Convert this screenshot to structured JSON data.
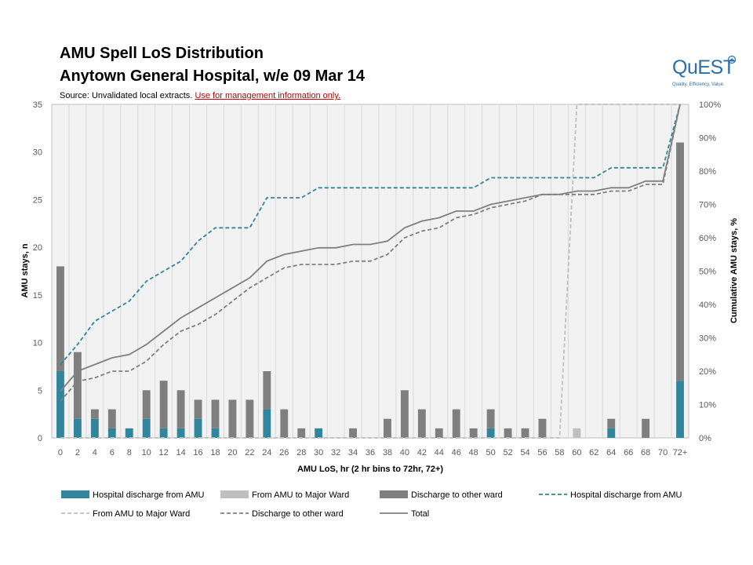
{
  "header": {
    "title_line1": "AMU Spell LoS Distribution",
    "title_line2": "Anytown General Hospital, w/e 09 Mar 14",
    "source_prefix": "Source:  Unvalidated local extracts.",
    "source_warning": "Use for management  information only."
  },
  "logo": {
    "name": "QuEST",
    "tagline": "Quality, Efficiency, Value"
  },
  "colors": {
    "hospital_discharge": "#31859c",
    "major_ward": "#bfbfbf",
    "other_ward": "#7f7f7f",
    "total": "#808080",
    "grid": "#d9d9d9",
    "plot_bg": "#f2f2f2"
  },
  "chart_data": {
    "type": "bar",
    "title": "AMU Spell LoS Distribution",
    "xlabel": "AMU LoS, hr (2 hr bins to 72hr, 72+)",
    "ylabel": "AMU stays, n",
    "y2label": "Cumulative AMU stays, %",
    "ylim": [
      0,
      35
    ],
    "yticks": [
      "0",
      "5",
      "10",
      "15",
      "20",
      "25",
      "30",
      "35"
    ],
    "y2lim": [
      0,
      100
    ],
    "y2ticks": [
      "0%",
      "10%",
      "20%",
      "30%",
      "40%",
      "50%",
      "60%",
      "70%",
      "80%",
      "90%",
      "100%"
    ],
    "categories": [
      "0",
      "2",
      "4",
      "6",
      "8",
      "10",
      "12",
      "14",
      "16",
      "18",
      "20",
      "22",
      "24",
      "26",
      "28",
      "30",
      "32",
      "34",
      "36",
      "38",
      "40",
      "42",
      "44",
      "46",
      "48",
      "50",
      "52",
      "54",
      "56",
      "58",
      "60",
      "62",
      "64",
      "66",
      "68",
      "70",
      "72+"
    ],
    "bar_series": [
      {
        "name": "Hospital discharge from AMU",
        "color": "#31859c",
        "values": [
          7,
          2,
          2,
          1,
          1,
          2,
          1,
          1,
          2,
          1,
          0,
          0,
          3,
          0,
          0,
          1,
          0,
          0,
          0,
          0,
          0,
          0,
          0,
          0,
          0,
          1,
          0,
          0,
          0,
          0,
          0,
          0,
          1,
          0,
          0,
          0,
          6
        ]
      },
      {
        "name": "From AMU to Major Ward",
        "color": "#bfbfbf",
        "values": [
          0,
          0,
          0,
          0,
          0,
          0,
          0,
          0,
          0,
          0,
          0,
          0,
          0,
          0,
          0,
          0,
          0,
          0,
          0,
          0,
          0,
          0,
          0,
          0,
          0,
          0,
          0,
          0,
          0,
          0,
          1,
          0,
          0,
          0,
          0,
          0,
          0
        ]
      },
      {
        "name": "Discharge to other ward",
        "color": "#7f7f7f",
        "values": [
          11,
          7,
          1,
          2,
          0,
          3,
          5,
          4,
          2,
          3,
          4,
          4,
          4,
          3,
          1,
          0,
          0,
          1,
          0,
          2,
          5,
          3,
          1,
          3,
          1,
          2,
          1,
          1,
          2,
          0,
          0,
          0,
          1,
          0,
          2,
          0,
          25
        ]
      }
    ],
    "line_series": [
      {
        "name": "Hospital discharge from AMU",
        "color": "#31859c",
        "style": "dashed",
        "values": [
          22,
          28,
          35,
          38,
          41,
          47,
          50,
          53,
          59,
          63,
          63,
          63,
          72,
          72,
          72,
          75,
          75,
          75,
          75,
          75,
          75,
          75,
          75,
          75,
          75,
          78,
          78,
          78,
          78,
          78,
          78,
          78,
          81,
          81,
          81,
          81,
          100
        ]
      },
      {
        "name": "From AMU to Major Ward",
        "color": "#bfbfbf",
        "style": "dashed",
        "values": [
          0,
          0,
          0,
          0,
          0,
          0,
          0,
          0,
          0,
          0,
          0,
          0,
          0,
          0,
          0,
          0,
          0,
          0,
          0,
          0,
          0,
          0,
          0,
          0,
          0,
          0,
          0,
          0,
          0,
          0,
          100,
          100,
          100,
          100,
          100,
          100,
          100
        ]
      },
      {
        "name": "Discharge to other ward",
        "color": "#7f7f7f",
        "style": "dashed",
        "values": [
          11,
          17,
          18,
          20,
          20,
          23,
          28,
          32,
          34,
          37,
          41,
          45,
          48,
          51,
          52,
          52,
          52,
          53,
          53,
          55,
          60,
          62,
          63,
          66,
          67,
          69,
          70,
          71,
          73,
          73,
          73,
          73,
          74,
          74,
          76,
          76,
          100
        ]
      },
      {
        "name": "Total",
        "color": "#808080",
        "style": "solid",
        "values": [
          14,
          20,
          22,
          24,
          25,
          28,
          32,
          36,
          39,
          42,
          45,
          48,
          53,
          55,
          56,
          57,
          57,
          58,
          58,
          59,
          63,
          65,
          66,
          68,
          68,
          70,
          71,
          72,
          73,
          73,
          74,
          74,
          75,
          75,
          77,
          77,
          100
        ]
      }
    ],
    "legend": [
      {
        "label": "Hospital discharge from AMU",
        "kind": "bar",
        "color": "#31859c"
      },
      {
        "label": "From AMU to Major Ward",
        "kind": "bar",
        "color": "#bfbfbf"
      },
      {
        "label": "Discharge to other ward",
        "kind": "bar",
        "color": "#7f7f7f"
      },
      {
        "label": "Hospital discharge from AMU",
        "kind": "dashed",
        "color": "#31859c"
      },
      {
        "label": "From AMU to Major Ward",
        "kind": "dashed",
        "color": "#bfbfbf"
      },
      {
        "label": "Discharge to other ward",
        "kind": "dashed",
        "color": "#7f7f7f"
      },
      {
        "label": "Total",
        "kind": "solid",
        "color": "#808080"
      }
    ],
    "legend_position": "bottom"
  }
}
